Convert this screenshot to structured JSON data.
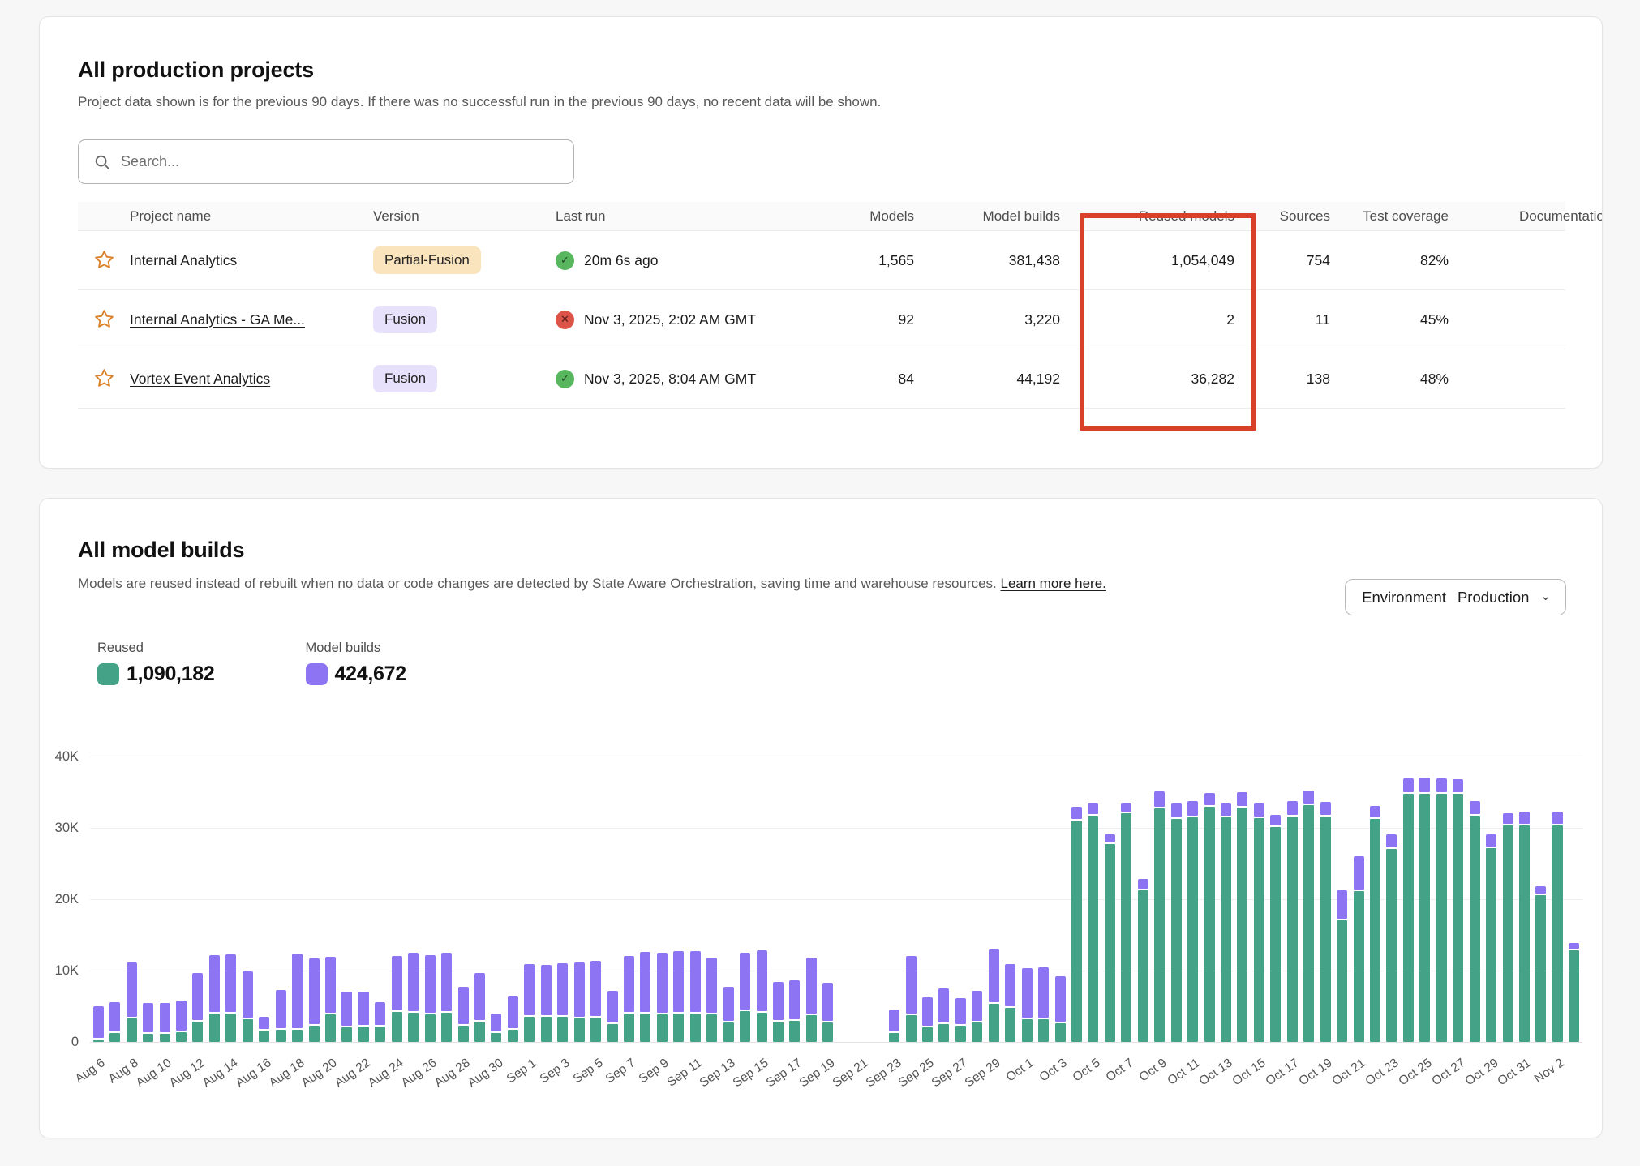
{
  "projects_card": {
    "title": "All production projects",
    "subtitle": "Project data shown is for the previous 90 days. If there was no successful run in the previous 90 days, no recent data will be shown.",
    "search": {
      "placeholder": "Search..."
    },
    "table": {
      "columns": {
        "name": "Project name",
        "version": "Version",
        "last_run": "Last run",
        "models": "Models",
        "model_builds": "Model builds",
        "reused_models": "Reused models",
        "sources": "Sources",
        "test_coverage": "Test coverage",
        "documentation": "Documentation coverage"
      },
      "rows": [
        {
          "name": "Internal Analytics",
          "version": "Partial-Fusion",
          "version_style": "warning",
          "last_run": "20m 6s ago",
          "last_run_status": "success",
          "models": "1,565",
          "model_builds": "381,438",
          "reused_models": "1,054,049",
          "sources": "754",
          "test_coverage": "82%"
        },
        {
          "name": "Internal Analytics - GA Me...",
          "version": "Fusion",
          "version_style": "info",
          "last_run": "Nov 3, 2025, 2:02 AM GMT",
          "last_run_status": "error",
          "models": "92",
          "model_builds": "3,220",
          "reused_models": "2",
          "sources": "11",
          "test_coverage": "45%"
        },
        {
          "name": "Vortex Event Analytics",
          "version": "Fusion",
          "version_style": "info",
          "last_run": "Nov 3, 2025, 8:04 AM GMT",
          "last_run_status": "success",
          "models": "84",
          "model_builds": "44,192",
          "reused_models": "36,282",
          "sources": "138",
          "test_coverage": "48%"
        }
      ],
      "highlighted_column": "Reused models",
      "highlight_color": "#d8402a"
    }
  },
  "builds_card": {
    "title": "All model builds",
    "description": "Models are reused instead of rebuilt when no data or code changes are detected by State Aware Orchestration, saving time and warehouse resources.",
    "learn_more": "Learn more here.",
    "environment": {
      "label": "Environment",
      "value": "Production"
    },
    "legend": [
      {
        "label": "Reused",
        "value": "1,090,182",
        "color": "#44a287"
      },
      {
        "label": "Model builds",
        "value": "424,672",
        "color": "#8c74f2"
      }
    ]
  },
  "chart_data": {
    "type": "bar",
    "stacked": true,
    "title": "All model builds",
    "xlabel": "",
    "ylabel": "",
    "ylim": [
      0,
      40000
    ],
    "yticks": [
      "0",
      "10K",
      "20K",
      "30K",
      "40K"
    ],
    "grid": true,
    "legend_position": "top-left",
    "series_names": [
      "Reused",
      "Model builds"
    ],
    "colors": {
      "reused": "#44a287",
      "builds": "#8c74f2"
    },
    "days": [
      {
        "d": "Aug 6",
        "r": 300,
        "b": 4700
      },
      {
        "d": "Aug 7",
        "r": 1200,
        "b": 4400
      },
      {
        "d": "Aug 8",
        "r": 3300,
        "b": 7900
      },
      {
        "d": "Aug 9",
        "r": 1100,
        "b": 4400
      },
      {
        "d": "Aug 10",
        "r": 1100,
        "b": 4400
      },
      {
        "d": "Aug 11",
        "r": 1400,
        "b": 4400
      },
      {
        "d": "Aug 12",
        "r": 2900,
        "b": 6800
      },
      {
        "d": "Aug 13",
        "r": 4000,
        "b": 8200
      },
      {
        "d": "Aug 14",
        "r": 4000,
        "b": 8300
      },
      {
        "d": "Aug 15",
        "r": 3200,
        "b": 6700
      },
      {
        "d": "Aug 16",
        "r": 1600,
        "b": 1900
      },
      {
        "d": "Aug 17",
        "r": 1700,
        "b": 5600
      },
      {
        "d": "Aug 18",
        "r": 1700,
        "b": 10700
      },
      {
        "d": "Aug 19",
        "r": 2300,
        "b": 9400
      },
      {
        "d": "Aug 20",
        "r": 3900,
        "b": 8000
      },
      {
        "d": "Aug 21",
        "r": 2100,
        "b": 4900
      },
      {
        "d": "Aug 22",
        "r": 2200,
        "b": 4900
      },
      {
        "d": "Aug 23",
        "r": 2200,
        "b": 3400
      },
      {
        "d": "Aug 24",
        "r": 4200,
        "b": 7800
      },
      {
        "d": "Aug 25",
        "r": 4100,
        "b": 8400
      },
      {
        "d": "Aug 26",
        "r": 3900,
        "b": 8300
      },
      {
        "d": "Aug 27",
        "r": 4100,
        "b": 8400
      },
      {
        "d": "Aug 28",
        "r": 2300,
        "b": 5400
      },
      {
        "d": "Aug 29",
        "r": 2900,
        "b": 6800
      },
      {
        "d": "Aug 30",
        "r": 1200,
        "b": 2800
      },
      {
        "d": "Aug 31",
        "r": 1700,
        "b": 4800
      },
      {
        "d": "Sep 1",
        "r": 3500,
        "b": 7400
      },
      {
        "d": "Sep 2",
        "r": 3500,
        "b": 7300
      },
      {
        "d": "Sep 3",
        "r": 3500,
        "b": 7500
      },
      {
        "d": "Sep 4",
        "r": 3300,
        "b": 7800
      },
      {
        "d": "Sep 5",
        "r": 3400,
        "b": 8000
      },
      {
        "d": "Sep 6",
        "r": 2500,
        "b": 4700
      },
      {
        "d": "Sep 7",
        "r": 4000,
        "b": 8100
      },
      {
        "d": "Sep 8",
        "r": 4000,
        "b": 8600
      },
      {
        "d": "Sep 9",
        "r": 3900,
        "b": 8600
      },
      {
        "d": "Sep 10",
        "r": 4000,
        "b": 8700
      },
      {
        "d": "Sep 11",
        "r": 4000,
        "b": 8700
      },
      {
        "d": "Sep 12",
        "r": 3900,
        "b": 7900
      },
      {
        "d": "Sep 13",
        "r": 2700,
        "b": 5000
      },
      {
        "d": "Sep 14",
        "r": 4300,
        "b": 8200
      },
      {
        "d": "Sep 15",
        "r": 4100,
        "b": 8800
      },
      {
        "d": "Sep 16",
        "r": 2800,
        "b": 5600
      },
      {
        "d": "Sep 17",
        "r": 3000,
        "b": 5600
      },
      {
        "d": "Sep 18",
        "r": 3700,
        "b": 8100
      },
      {
        "d": "Sep 19",
        "r": 2700,
        "b": 5600
      },
      {
        "d": "Sep 20",
        "r": null,
        "b": null
      },
      {
        "d": "Sep 21",
        "r": null,
        "b": null
      },
      {
        "d": "Sep 22",
        "r": null,
        "b": null
      },
      {
        "d": "Sep 23",
        "r": 1300,
        "b": 3300
      },
      {
        "d": "Sep 24",
        "r": 3700,
        "b": 8400
      },
      {
        "d": "Sep 25",
        "r": 2000,
        "b": 4200
      },
      {
        "d": "Sep 26",
        "r": 2500,
        "b": 5000
      },
      {
        "d": "Sep 27",
        "r": 2300,
        "b": 3800
      },
      {
        "d": "Sep 28",
        "r": 2700,
        "b": 4500
      },
      {
        "d": "Sep 29",
        "r": 5400,
        "b": 7700
      },
      {
        "d": "Sep 30",
        "r": 4800,
        "b": 6100
      },
      {
        "d": "Oct 1",
        "r": 3200,
        "b": 7100
      },
      {
        "d": "Oct 2",
        "r": 3200,
        "b": 7300
      },
      {
        "d": "Oct 3",
        "r": 2600,
        "b": 6600
      },
      {
        "d": "Oct 4",
        "r": 31000,
        "b": 2000
      },
      {
        "d": "Oct 5",
        "r": 31700,
        "b": 1800
      },
      {
        "d": "Oct 6",
        "r": 27700,
        "b": 1400
      },
      {
        "d": "Oct 7",
        "r": 32000,
        "b": 1500
      },
      {
        "d": "Oct 8",
        "r": 21300,
        "b": 1500
      },
      {
        "d": "Oct 9",
        "r": 32700,
        "b": 2400
      },
      {
        "d": "Oct 10",
        "r": 31300,
        "b": 2200
      },
      {
        "d": "Oct 11",
        "r": 31500,
        "b": 2200
      },
      {
        "d": "Oct 12",
        "r": 33000,
        "b": 1900
      },
      {
        "d": "Oct 13",
        "r": 31500,
        "b": 2000
      },
      {
        "d": "Oct 14",
        "r": 32900,
        "b": 2100
      },
      {
        "d": "Oct 15",
        "r": 31400,
        "b": 2100
      },
      {
        "d": "Oct 16",
        "r": 30100,
        "b": 1700
      },
      {
        "d": "Oct 17",
        "r": 31600,
        "b": 2100
      },
      {
        "d": "Oct 18",
        "r": 33200,
        "b": 2000
      },
      {
        "d": "Oct 19",
        "r": 31600,
        "b": 2000
      },
      {
        "d": "Oct 20",
        "r": 17000,
        "b": 4300
      },
      {
        "d": "Oct 21",
        "r": 21100,
        "b": 4900
      },
      {
        "d": "Oct 22",
        "r": 31200,
        "b": 1900
      },
      {
        "d": "Oct 23",
        "r": 27100,
        "b": 2000
      },
      {
        "d": "Oct 24",
        "r": 34800,
        "b": 2100
      },
      {
        "d": "Oct 25",
        "r": 34800,
        "b": 2200
      },
      {
        "d": "Oct 26",
        "r": 34800,
        "b": 2100
      },
      {
        "d": "Oct 27",
        "r": 34800,
        "b": 2000
      },
      {
        "d": "Oct 28",
        "r": 31700,
        "b": 2000
      },
      {
        "d": "Oct 29",
        "r": 27200,
        "b": 1900
      },
      {
        "d": "Oct 30",
        "r": 30300,
        "b": 1800
      },
      {
        "d": "Oct 31",
        "r": 30400,
        "b": 1900
      },
      {
        "d": "Nov 1",
        "r": 20600,
        "b": 1200
      },
      {
        "d": "Nov 2",
        "r": 30400,
        "b": 1900
      },
      {
        "d": "Nov 3",
        "r": 12900,
        "b": 1000
      }
    ]
  }
}
